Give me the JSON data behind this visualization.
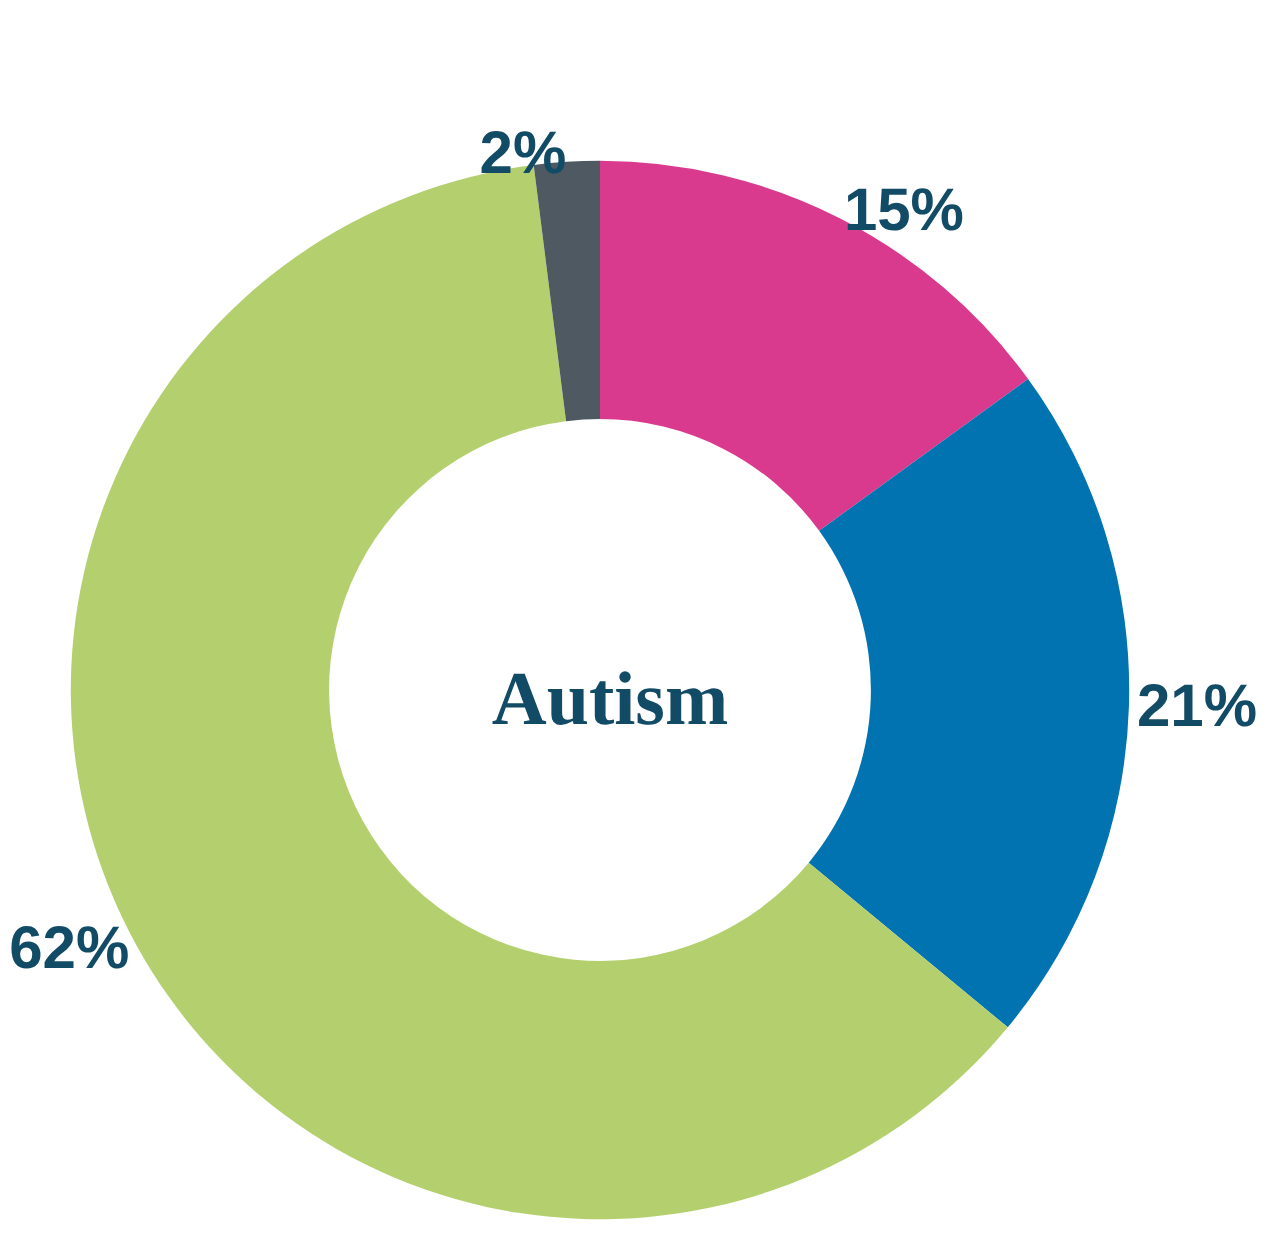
{
  "chart_data": {
    "type": "donut",
    "title": "Autism",
    "categories": [
      null,
      null,
      null,
      null
    ],
    "values": [
      15,
      21,
      62,
      2
    ],
    "colors": [
      "#da3a8e",
      "#0073b0",
      "#b4d06e",
      "#4e5962"
    ],
    "value_labels": [
      "15%",
      "21%",
      "62%",
      "2%"
    ]
  }
}
